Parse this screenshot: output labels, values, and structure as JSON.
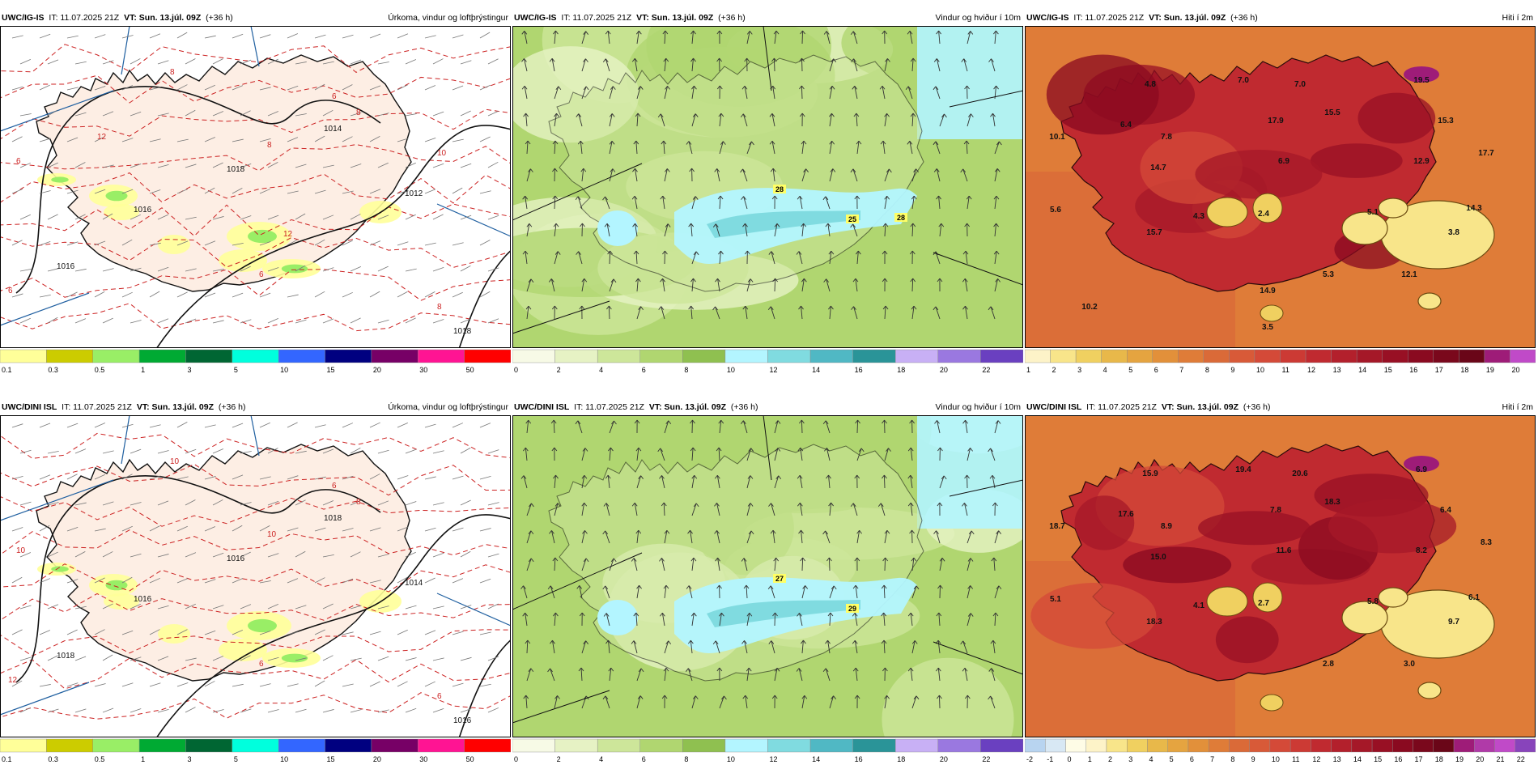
{
  "shared": {
    "valid_time": "VT: Sun. 13.júl. 09Z",
    "init_time": "IT: 11.07.2025 21Z",
    "lead": "(+36 h)"
  },
  "rows": [
    {
      "model": "UWC/IG-IS",
      "panels": [
        {
          "type": "precip",
          "title": "Úrkoma, vindur og loftþrýstingur",
          "scale": [
            "0.1",
            "0.3",
            "0.5",
            "1",
            "3",
            "5",
            "10",
            "15",
            "20",
            "30",
            "50"
          ],
          "colors": [
            "#ffff99",
            "#cccc00",
            "#99ee66",
            "#00aa33",
            "#006633",
            "#00ffdd",
            "#3366ff",
            "#000080",
            "#770066",
            "#ff1493",
            "#ff0000"
          ],
          "map_labels": [
            "1016",
            "1016",
            "1018",
            "1014",
            "1012",
            "1018",
            "8",
            "8",
            "8",
            "6",
            "6",
            "6",
            "6",
            "8",
            "10",
            "10",
            "12",
            "12"
          ]
        },
        {
          "type": "wind",
          "title": "Vindur og hviður í 10m",
          "scale": [
            "0",
            "2",
            "4",
            "6",
            "8",
            "10",
            "12",
            "14",
            "16",
            "18",
            "20",
            "22"
          ],
          "colors": [
            "#f7fae6",
            "#e6f2c4",
            "#cde69a",
            "#b0d670",
            "#8fc050",
            "#b3f5ff",
            "#80dbe0",
            "#50b8c4",
            "#2a9498",
            "#c8b0f5",
            "#9a78e0",
            "#6a40c0"
          ],
          "map_labels": [
            "28",
            "25",
            "28"
          ]
        },
        {
          "type": "temp",
          "title": "Hiti í 2m",
          "scale": [
            "1",
            "2",
            "3",
            "4",
            "5",
            "6",
            "7",
            "8",
            "9",
            "10",
            "11",
            "12",
            "13",
            "14",
            "15",
            "16",
            "17",
            "18",
            "19",
            "20"
          ],
          "colors": [
            "#fdf3c8",
            "#f8e58a",
            "#f0d060",
            "#e8b84a",
            "#e5a440",
            "#e2903a",
            "#df7c38",
            "#da6a38",
            "#d85a38",
            "#d44a38",
            "#cc3a34",
            "#c02a30",
            "#b3202c",
            "#a51828",
            "#981024",
            "#8a0a20",
            "#7a081c",
            "#6a0618",
            "#9e1c78",
            "#c04ac8"
          ],
          "map_labels": [
            "4.8",
            "7.0",
            "7.0",
            "19.5",
            "6.4",
            "7.8",
            "17.9",
            "15.5",
            "15.3",
            "10.1",
            "6.9",
            "12.9",
            "17.7",
            "14.7",
            "5.6",
            "4.3",
            "2.4",
            "5.1",
            "14.3",
            "15.7",
            "3.8",
            "5.3",
            "12.1",
            "14.9",
            "10.2",
            "3.5"
          ]
        }
      ]
    },
    {
      "model": "UWC/DINI ISL",
      "panels": [
        {
          "type": "precip",
          "title": "Úrkoma, vindur og loftþrýstingur",
          "scale": [
            "0.1",
            "0.3",
            "0.5",
            "1",
            "3",
            "5",
            "10",
            "15",
            "20",
            "30",
            "50"
          ],
          "colors": [
            "#ffff99",
            "#cccc00",
            "#99ee66",
            "#00aa33",
            "#006633",
            "#00ffdd",
            "#3366ff",
            "#000080",
            "#770066",
            "#ff1493",
            "#ff0000"
          ],
          "map_labels": [
            "1018",
            "1016",
            "1016",
            "1018",
            "1014",
            "1016",
            "10",
            "10",
            "8",
            "10",
            "12",
            "6",
            "6",
            "6"
          ]
        },
        {
          "type": "wind",
          "title": "Vindur og hviður í 10m",
          "scale": [
            "0",
            "2",
            "4",
            "6",
            "8",
            "10",
            "12",
            "14",
            "16",
            "18",
            "20",
            "22"
          ],
          "colors": [
            "#f7fae6",
            "#e6f2c4",
            "#cde69a",
            "#b0d670",
            "#8fc050",
            "#b3f5ff",
            "#80dbe0",
            "#50b8c4",
            "#2a9498",
            "#c8b0f5",
            "#9a78e0",
            "#6a40c0"
          ],
          "map_labels": [
            "27",
            "29"
          ]
        },
        {
          "type": "temp",
          "title": "Hiti í 2m",
          "scale": [
            "-2",
            "-1",
            "0",
            "1",
            "2",
            "3",
            "4",
            "5",
            "6",
            "7",
            "8",
            "9",
            "10",
            "11",
            "12",
            "13",
            "14",
            "15",
            "16",
            "17",
            "18",
            "19",
            "20",
            "21",
            "22"
          ],
          "colors": [
            "#b8d4f0",
            "#d8e8f4",
            "#fefce6",
            "#fdf3c8",
            "#f8e58a",
            "#f0d060",
            "#e8b84a",
            "#e5a440",
            "#e2903a",
            "#df7c38",
            "#da6a38",
            "#d85a38",
            "#d44a38",
            "#cc3a34",
            "#c02a30",
            "#b3202c",
            "#a51828",
            "#981024",
            "#8a0a20",
            "#7a081c",
            "#6a0618",
            "#9e1c78",
            "#b03aa8",
            "#c04ac8",
            "#8844bb"
          ],
          "map_labels": [
            "15.9",
            "19.4",
            "20.6",
            "6.9",
            "17.6",
            "8.9",
            "7.8",
            "18.3",
            "6.4",
            "18.7",
            "11.6",
            "8.2",
            "8.3",
            "15.0",
            "5.1",
            "4.1",
            "2.7",
            "5.8",
            "6.1",
            "18.3",
            "9.7",
            "2.8",
            "3.0"
          ]
        }
      ]
    }
  ]
}
